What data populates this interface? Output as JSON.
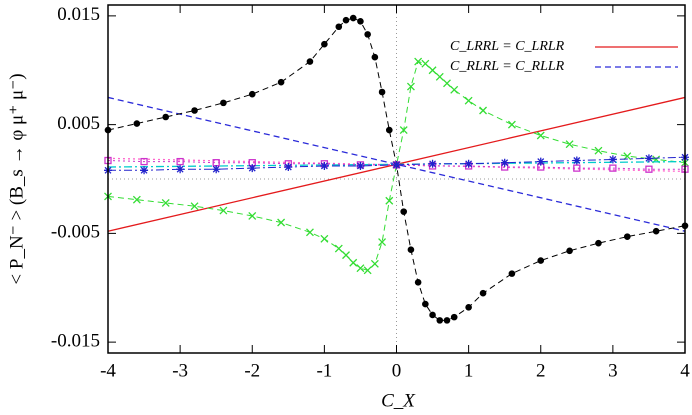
{
  "chart_data": {
    "type": "line",
    "xlabel": "C_X",
    "ylabel": "< P_N⁻ > (B_s → φ μ⁺ μ⁻)",
    "xlim": [
      -4,
      4
    ],
    "xticks": [
      -4,
      -3,
      -2,
      -1,
      0,
      1,
      2,
      3,
      4
    ],
    "ylim": [
      -0.016,
      0.016
    ],
    "yticks": [
      -0.015,
      -0.005,
      0.005,
      0.015
    ],
    "legend": "upper right",
    "series": [
      {
        "name": "C_LRRL = C_LRLR",
        "color": "#e41a1c",
        "linestyle": "solid",
        "marker": "none",
        "x": [
          -4,
          4
        ],
        "values": [
          -0.0048,
          0.0075
        ]
      },
      {
        "name": "C_RLRL = C_RLLR",
        "color": "#2b2bd9",
        "linestyle": "dashed",
        "marker": "none",
        "x": [
          -4,
          4
        ],
        "values": [
          0.0075,
          -0.0048
        ]
      },
      {
        "color": "#000000",
        "linestyle": "dashed",
        "marker": "circle",
        "x": [
          -4,
          -3.6,
          -3.2,
          -2.8,
          -2.4,
          -2,
          -1.6,
          -1.2,
          -1,
          -0.8,
          -0.7,
          -0.6,
          -0.5,
          -0.4,
          -0.3,
          -0.2,
          -0.1,
          0,
          0.1,
          0.2,
          0.3,
          0.4,
          0.5,
          0.6,
          0.7,
          0.8,
          1,
          1.2,
          1.6,
          2,
          2.4,
          2.8,
          3.2,
          3.6,
          4
        ],
        "values": [
          0.0045,
          0.0051,
          0.0057,
          0.0063,
          0.007,
          0.0078,
          0.0089,
          0.0108,
          0.0124,
          0.014,
          0.0146,
          0.0148,
          0.0145,
          0.0133,
          0.0112,
          0.008,
          0.0045,
          0.0013,
          -0.003,
          -0.0065,
          -0.0095,
          -0.0115,
          -0.0125,
          -0.013,
          -0.013,
          -0.0127,
          -0.0118,
          -0.0105,
          -0.0087,
          -0.0075,
          -0.0066,
          -0.0059,
          -0.0053,
          -0.0048,
          -0.0043
        ]
      },
      {
        "color": "#33dd33",
        "linestyle": "dashed",
        "marker": "x",
        "x": [
          -4,
          -3.6,
          -3.2,
          -2.8,
          -2.4,
          -2,
          -1.6,
          -1.2,
          -1,
          -0.8,
          -0.7,
          -0.6,
          -0.5,
          -0.4,
          -0.3,
          -0.2,
          -0.1,
          0,
          0.1,
          0.2,
          0.3,
          0.4,
          0.5,
          0.6,
          0.7,
          0.8,
          1,
          1.2,
          1.6,
          2,
          2.4,
          2.8,
          3.2,
          3.6,
          4
        ],
        "values": [
          -0.0016,
          -0.0019,
          -0.0022,
          -0.0025,
          -0.0029,
          -0.0034,
          -0.004,
          -0.0049,
          -0.0055,
          -0.0064,
          -0.007,
          -0.0077,
          -0.0082,
          -0.0084,
          -0.0078,
          -0.0058,
          -0.002,
          0.0013,
          0.0045,
          0.0085,
          0.0108,
          0.0106,
          0.01,
          0.0094,
          0.0088,
          0.0082,
          0.0072,
          0.0063,
          0.005,
          0.004,
          0.0032,
          0.0026,
          0.0021,
          0.0018,
          0.0015
        ]
      },
      {
        "color": "#ff66cc",
        "linestyle": "dotted",
        "marker": "none",
        "x": [
          -4,
          4
        ],
        "values": [
          0.0019,
          0.0007
        ]
      },
      {
        "color": "#00cccc",
        "linestyle": "dashdot",
        "marker": "none",
        "x": [
          -4,
          4
        ],
        "values": [
          0.0011,
          0.0016
        ]
      },
      {
        "color": "#cc33cc",
        "linestyle": "dotted",
        "marker": "square",
        "x": [
          -4,
          -3.5,
          -3,
          -2.5,
          -2,
          -1.5,
          -1,
          -0.5,
          0,
          0.5,
          1,
          1.5,
          2,
          2.5,
          3,
          3.5,
          4
        ],
        "values": [
          0.0017,
          0.0016,
          0.0016,
          0.0015,
          0.0015,
          0.0014,
          0.0014,
          0.0013,
          0.0013,
          0.0012,
          0.0012,
          0.0011,
          0.0011,
          0.001,
          0.001,
          0.0009,
          0.0009
        ]
      },
      {
        "color": "#2222cc",
        "linestyle": "dashdot",
        "marker": "star",
        "x": [
          -4,
          -3.5,
          -3,
          -2.5,
          -2,
          -1.5,
          -1,
          -0.5,
          0,
          0.5,
          1,
          1.5,
          2,
          2.5,
          3,
          3.5,
          4
        ],
        "values": [
          0.0008,
          0.0008,
          0.0009,
          0.0009,
          0.001,
          0.0011,
          0.0012,
          0.0012,
          0.0013,
          0.0014,
          0.0014,
          0.0015,
          0.0016,
          0.0017,
          0.0018,
          0.0019,
          0.002
        ]
      }
    ]
  }
}
